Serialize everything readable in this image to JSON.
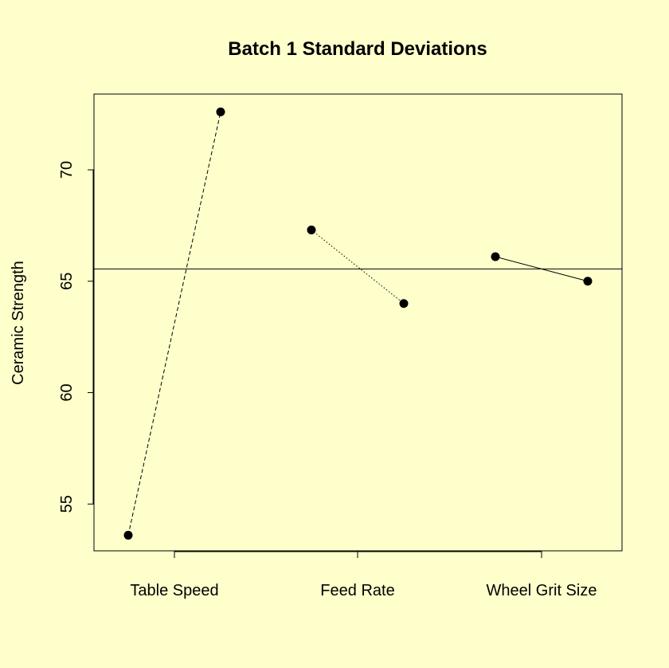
{
  "chart_data": {
    "type": "scatter",
    "title": "Batch 1 Standard Deviations",
    "xlabel": "",
    "ylabel": "Ceramic Strength",
    "categories": [
      "Table Speed",
      "Feed Rate",
      "Wheel Grit Size"
    ],
    "ylim": [
      52.9,
      73.4
    ],
    "yticks": [
      55,
      60,
      65,
      70
    ],
    "grid": false,
    "reference_line": 65.55,
    "series": [
      {
        "category": "Table Speed",
        "line_style": "dashed",
        "points": [
          {
            "level": "-",
            "y": 53.6
          },
          {
            "level": "+",
            "y": 72.6
          }
        ]
      },
      {
        "category": "Feed Rate",
        "line_style": "dotted",
        "points": [
          {
            "level": "-",
            "y": 67.3
          },
          {
            "level": "+",
            "y": 64.0
          }
        ]
      },
      {
        "category": "Wheel Grit Size",
        "line_style": "solid",
        "points": [
          {
            "level": "-",
            "y": 66.1
          },
          {
            "level": "+",
            "y": 65.0
          }
        ]
      }
    ]
  }
}
